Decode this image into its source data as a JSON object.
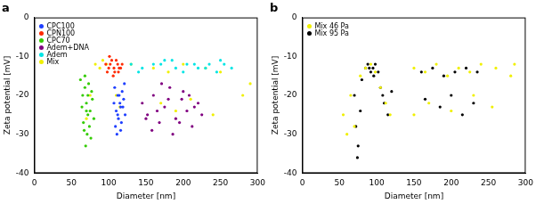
{
  "chart_data": [
    {
      "type": "scatter",
      "title": "a",
      "x_label": "Diameter [nm]",
      "y_label": "Zeta potential [mV]",
      "xlim": [
        0,
        300
      ],
      "xticks": [
        0,
        50,
        100,
        150,
        200,
        250,
        300
      ],
      "ylim": [
        -40,
        0
      ],
      "yticks": [
        -40,
        -30,
        -20,
        -10,
        0
      ],
      "grid": false,
      "legend": "upper left",
      "marker": "circle",
      "series": [
        {
          "name": "CPC100",
          "color": "#1f3fff",
          "x": [
            108,
            112,
            115,
            118,
            110,
            120,
            113,
            116,
            122,
            109,
            117,
            111,
            119,
            114,
            121,
            107,
            116,
            112
          ],
          "values": [
            -18,
            -20,
            -22,
            -19,
            -24,
            -21,
            -26,
            -23,
            -25,
            -28,
            -27,
            -30,
            -23,
            -20,
            -17,
            -22,
            -29,
            -25
          ]
        },
        {
          "name": "CPN100",
          "color": "#ff2a00",
          "x": [
            96,
            100,
            104,
            108,
            112,
            116,
            98,
            102,
            106,
            110,
            114,
            118,
            101,
            107,
            113
          ],
          "values": [
            -12,
            -13,
            -11,
            -14,
            -12,
            -13,
            -14,
            -12,
            -15,
            -11,
            -13,
            -12,
            -10,
            -13,
            -14
          ]
        },
        {
          "name": "CPC70",
          "color": "#33cc00",
          "x": [
            62,
            65,
            68,
            70,
            72,
            75,
            78,
            66,
            71,
            74,
            77,
            69,
            64,
            73,
            80,
            67,
            76,
            70,
            72,
            68
          ],
          "values": [
            -16,
            -20,
            -18,
            -22,
            -25,
            -24,
            -21,
            -27,
            -30,
            -28,
            -19,
            -33,
            -23,
            -17,
            -26,
            -29,
            -31,
            -24,
            -20,
            -15
          ]
        },
        {
          "name": "Adem+DNA",
          "color": "#800080",
          "x": [
            145,
            152,
            160,
            168,
            175,
            182,
            190,
            198,
            205,
            212,
            220,
            158,
            171,
            186,
            200,
            215,
            165,
            180,
            195,
            150,
            208,
            225
          ],
          "values": [
            -22,
            -25,
            -20,
            -27,
            -23,
            -18,
            -26,
            -21,
            -24,
            -28,
            -22,
            -29,
            -17,
            -30,
            -19,
            -23,
            -24,
            -21,
            -27,
            -26,
            -20,
            -25
          ]
        },
        {
          "name": "Adem",
          "color": "#00e5e5",
          "x": [
            130,
            145,
            160,
            175,
            190,
            205,
            220,
            235,
            250,
            265,
            140,
            170,
            200,
            230,
            255,
            185,
            215,
            245
          ],
          "values": [
            -12,
            -13,
            -12,
            -11,
            -13,
            -12,
            -13,
            -12,
            -11,
            -13,
            -14,
            -12,
            -14,
            -13,
            -12,
            -11,
            -12,
            -14
          ]
        },
        {
          "name": "Mix",
          "color": "#f0f000",
          "x": [
            82,
            88,
            92,
            97,
            75,
            70,
            110,
            115,
            160,
            180,
            200,
            230,
            250,
            170,
            190,
            210,
            240,
            280,
            290,
            130
          ],
          "values": [
            -12,
            -13,
            -11,
            -12,
            -20,
            -26,
            -20,
            -23,
            -13,
            -14,
            -12,
            -13,
            -14,
            -22,
            -24,
            -21,
            -25,
            -20,
            -17,
            -12
          ]
        }
      ]
    },
    {
      "type": "scatter",
      "title": "b",
      "x_label": "Diameter [nm]",
      "y_label": "Zeta potential [mV]",
      "xlim": [
        0,
        300
      ],
      "xticks": [
        0,
        50,
        100,
        150,
        200,
        250,
        300
      ],
      "ylim": [
        -40,
        0
      ],
      "yticks": [
        -40,
        -30,
        -20,
        -10,
        0
      ],
      "grid": false,
      "legend": "upper left",
      "marker": "circle",
      "series": [
        {
          "name": "Mix 46 Pa",
          "color": "#f0f000",
          "x": [
            55,
            60,
            65,
            70,
            78,
            85,
            92,
            98,
            105,
            112,
            118,
            150,
            165,
            180,
            195,
            210,
            225,
            240,
            260,
            280,
            170,
            200,
            230,
            255,
            150,
            285
          ],
          "values": [
            -25,
            -30,
            -20,
            -28,
            -15,
            -13,
            -12,
            -14,
            -18,
            -22,
            -25,
            -13,
            -14,
            -12,
            -15,
            -13,
            -14,
            -12,
            -13,
            -15,
            -22,
            -24,
            -20,
            -23,
            -25,
            -12
          ]
        },
        {
          "name": "Mix 95 Pa",
          "color": "#000000",
          "x": [
            70,
            72,
            75,
            78,
            80,
            74,
            85,
            88,
            92,
            95,
            98,
            102,
            90,
            96,
            105,
            110,
            115,
            108,
            160,
            175,
            190,
            205,
            220,
            235,
            165,
            185,
            200,
            215,
            230,
            120
          ],
          "values": [
            -20,
            -28,
            -33,
            -24,
            -16,
            -36,
            -13,
            -12,
            -14,
            -13,
            -12,
            -14,
            -13,
            -15,
            -18,
            -22,
            -25,
            -20,
            -14,
            -13,
            -15,
            -14,
            -13,
            -14,
            -21,
            -23,
            -20,
            -25,
            -22,
            -19
          ]
        }
      ]
    }
  ]
}
